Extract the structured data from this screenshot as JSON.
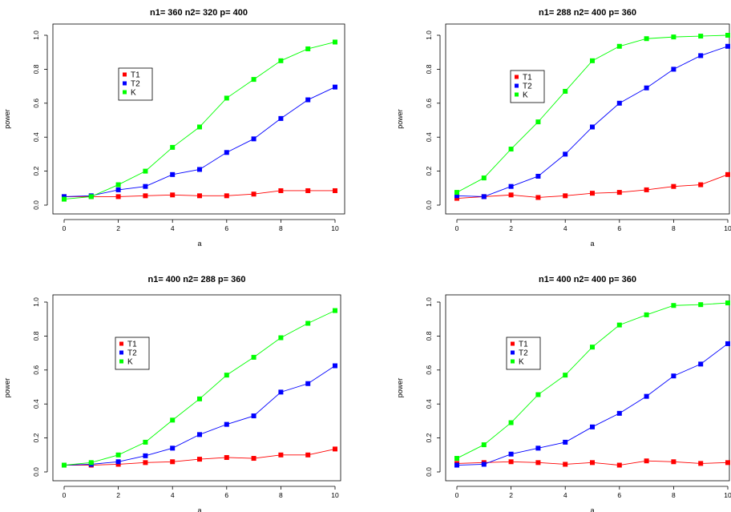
{
  "colors": {
    "T1": "#ff0000",
    "T2": "#0000ff",
    "K": "#00ff00"
  },
  "chart_data": [
    {
      "type": "line",
      "title": "n1= 360 n2= 320 p= 400",
      "xlabel": "a",
      "ylabel": "power",
      "xlim": [
        0,
        10
      ],
      "ylim": [
        0,
        1
      ],
      "xticks": [
        "0",
        "2",
        "4",
        "6",
        "8",
        "10"
      ],
      "yticks": [
        "0.0",
        "0.2",
        "0.4",
        "0.6",
        "0.8",
        "1.0"
      ],
      "x": [
        0,
        1,
        2,
        3,
        4,
        5,
        6,
        7,
        8,
        9,
        10
      ],
      "legend": "top-left",
      "series": [
        {
          "name": "T1",
          "values": [
            0.05,
            0.05,
            0.05,
            0.055,
            0.06,
            0.055,
            0.055,
            0.065,
            0.085,
            0.085,
            0.085
          ]
        },
        {
          "name": "T2",
          "values": [
            0.05,
            0.055,
            0.09,
            0.11,
            0.18,
            0.21,
            0.31,
            0.39,
            0.51,
            0.62,
            0.695
          ]
        },
        {
          "name": "K",
          "values": [
            0.035,
            0.05,
            0.12,
            0.2,
            0.34,
            0.46,
            0.63,
            0.74,
            0.85,
            0.92,
            0.96
          ]
        }
      ]
    },
    {
      "type": "line",
      "title": "n1= 288 n2= 400 p= 360",
      "xlabel": "a",
      "ylabel": "power",
      "xlim": [
        0,
        10
      ],
      "ylim": [
        0,
        1
      ],
      "xticks": [
        "0",
        "2",
        "4",
        "6",
        "8",
        "10"
      ],
      "yticks": [
        "0.0",
        "0.2",
        "0.4",
        "0.6",
        "0.8",
        "1.0"
      ],
      "x": [
        0,
        1,
        2,
        3,
        4,
        5,
        6,
        7,
        8,
        9,
        10
      ],
      "legend": "top-left",
      "series": [
        {
          "name": "T1",
          "values": [
            0.04,
            0.05,
            0.06,
            0.045,
            0.055,
            0.07,
            0.075,
            0.09,
            0.11,
            0.12,
            0.18
          ]
        },
        {
          "name": "T2",
          "values": [
            0.055,
            0.05,
            0.11,
            0.17,
            0.3,
            0.46,
            0.6,
            0.69,
            0.8,
            0.88,
            0.935
          ]
        },
        {
          "name": "K",
          "values": [
            0.075,
            0.16,
            0.33,
            0.49,
            0.67,
            0.85,
            0.935,
            0.98,
            0.99,
            0.995,
            1.0
          ]
        }
      ]
    },
    {
      "type": "line",
      "title": "n1= 400 n2= 288 p= 360",
      "xlabel": "a",
      "ylabel": "power",
      "xlim": [
        0,
        10
      ],
      "ylim": [
        0,
        1
      ],
      "xticks": [
        "0",
        "2",
        "4",
        "6",
        "8",
        "10"
      ],
      "yticks": [
        "0.0",
        "0.2",
        "0.4",
        "0.6",
        "0.8",
        "1.0"
      ],
      "x": [
        0,
        1,
        2,
        3,
        4,
        5,
        6,
        7,
        8,
        9,
        10
      ],
      "legend": "top-left",
      "series": [
        {
          "name": "T1",
          "values": [
            0.04,
            0.04,
            0.045,
            0.055,
            0.06,
            0.075,
            0.085,
            0.08,
            0.1,
            0.1,
            0.135
          ]
        },
        {
          "name": "T2",
          "values": [
            0.04,
            0.045,
            0.06,
            0.095,
            0.14,
            0.22,
            0.28,
            0.33,
            0.47,
            0.52,
            0.625
          ]
        },
        {
          "name": "K",
          "values": [
            0.04,
            0.055,
            0.1,
            0.175,
            0.305,
            0.43,
            0.57,
            0.675,
            0.79,
            0.875,
            0.95
          ]
        }
      ]
    },
    {
      "type": "line",
      "title": "n1= 400 n2= 400 p= 360",
      "xlabel": "a",
      "ylabel": "power",
      "xlim": [
        0,
        10
      ],
      "ylim": [
        0,
        1
      ],
      "xticks": [
        "0",
        "2",
        "4",
        "6",
        "8",
        "10"
      ],
      "yticks": [
        "0.0",
        "0.2",
        "0.4",
        "0.6",
        "0.8",
        "1.0"
      ],
      "x": [
        0,
        1,
        2,
        3,
        4,
        5,
        6,
        7,
        8,
        9,
        10
      ],
      "legend": "top-left",
      "series": [
        {
          "name": "T1",
          "values": [
            0.05,
            0.055,
            0.06,
            0.055,
            0.045,
            0.055,
            0.04,
            0.065,
            0.06,
            0.05,
            0.055
          ]
        },
        {
          "name": "T2",
          "values": [
            0.04,
            0.045,
            0.105,
            0.14,
            0.175,
            0.265,
            0.345,
            0.445,
            0.565,
            0.635,
            0.755
          ]
        },
        {
          "name": "K",
          "values": [
            0.08,
            0.16,
            0.29,
            0.455,
            0.57,
            0.735,
            0.865,
            0.925,
            0.98,
            0.985,
            0.995
          ]
        }
      ]
    }
  ]
}
